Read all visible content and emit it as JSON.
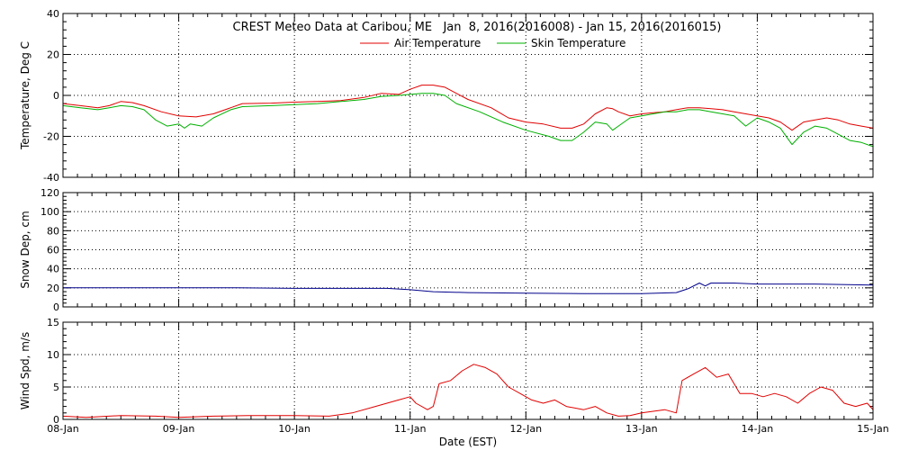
{
  "chart_data": {
    "type": "line",
    "title": "CREST Meteo Data at Caribou, ME   Jan  8, 2016(2016008) - Jan 15, 2016(2016015)",
    "xlabel": "Date (EST)",
    "x_ticks": [
      "08-Jan",
      "09-Jan",
      "10-Jan",
      "11-Jan",
      "12-Jan",
      "13-Jan",
      "14-Jan",
      "15-Jan"
    ],
    "x_range_days": [
      0,
      7
    ],
    "panels": [
      {
        "id": "temperature",
        "ylabel": "Temperature, Deg C",
        "ylim": [
          -40,
          40
        ],
        "yticks": [
          -40,
          -20,
          0,
          20,
          40
        ],
        "legend": "top-center",
        "series": [
          {
            "name": "Air Temperature",
            "color": "#e00000",
            "points": [
              [
                0.0,
                -4
              ],
              [
                0.15,
                -5
              ],
              [
                0.3,
                -6
              ],
              [
                0.4,
                -5
              ],
              [
                0.5,
                -3
              ],
              [
                0.6,
                -3.5
              ],
              [
                0.7,
                -5
              ],
              [
                0.85,
                -8
              ],
              [
                1.0,
                -10
              ],
              [
                1.15,
                -10.5
              ],
              [
                1.3,
                -9
              ],
              [
                1.45,
                -6
              ],
              [
                1.55,
                -4
              ],
              [
                1.8,
                -3.8
              ],
              [
                2.0,
                -3.3
              ],
              [
                2.2,
                -3
              ],
              [
                2.4,
                -2.5
              ],
              [
                2.6,
                -1
              ],
              [
                2.75,
                1
              ],
              [
                2.9,
                0.5
              ],
              [
                3.0,
                3
              ],
              [
                3.1,
                5
              ],
              [
                3.2,
                5
              ],
              [
                3.3,
                4
              ],
              [
                3.5,
                -2
              ],
              [
                3.7,
                -6
              ],
              [
                3.85,
                -11
              ],
              [
                4.0,
                -13
              ],
              [
                4.15,
                -14
              ],
              [
                4.3,
                -16
              ],
              [
                4.4,
                -16
              ],
              [
                4.5,
                -14
              ],
              [
                4.6,
                -9
              ],
              [
                4.7,
                -6
              ],
              [
                4.75,
                -6.5
              ],
              [
                4.8,
                -8
              ],
              [
                4.9,
                -10
              ],
              [
                5.0,
                -9
              ],
              [
                5.1,
                -8.5
              ],
              [
                5.2,
                -8
              ],
              [
                5.3,
                -7
              ],
              [
                5.4,
                -6
              ],
              [
                5.5,
                -6
              ],
              [
                5.6,
                -6.5
              ],
              [
                5.7,
                -7
              ],
              [
                5.8,
                -8
              ],
              [
                5.9,
                -9
              ],
              [
                6.0,
                -10
              ],
              [
                6.1,
                -11
              ],
              [
                6.2,
                -13
              ],
              [
                6.3,
                -17
              ],
              [
                6.4,
                -13
              ],
              [
                6.5,
                -12
              ],
              [
                6.6,
                -11
              ],
              [
                6.7,
                -12
              ],
              [
                6.8,
                -14
              ],
              [
                6.9,
                -15
              ],
              [
                7.0,
                -16
              ]
            ]
          },
          {
            "name": "Skin Temperature",
            "color": "#00b000",
            "points": [
              [
                0.0,
                -5
              ],
              [
                0.15,
                -6
              ],
              [
                0.3,
                -7
              ],
              [
                0.4,
                -6
              ],
              [
                0.5,
                -5
              ],
              [
                0.6,
                -5.5
              ],
              [
                0.7,
                -7
              ],
              [
                0.8,
                -12
              ],
              [
                0.9,
                -15
              ],
              [
                1.0,
                -14
              ],
              [
                1.05,
                -16
              ],
              [
                1.1,
                -14
              ],
              [
                1.2,
                -15
              ],
              [
                1.3,
                -11
              ],
              [
                1.45,
                -7
              ],
              [
                1.55,
                -5.5
              ],
              [
                1.8,
                -5
              ],
              [
                2.0,
                -4.5
              ],
              [
                2.2,
                -4
              ],
              [
                2.4,
                -3
              ],
              [
                2.6,
                -2
              ],
              [
                2.75,
                -0.5
              ],
              [
                2.9,
                0
              ],
              [
                3.0,
                0.5
              ],
              [
                3.1,
                1
              ],
              [
                3.2,
                1
              ],
              [
                3.3,
                0
              ],
              [
                3.4,
                -4
              ],
              [
                3.6,
                -8
              ],
              [
                3.8,
                -13
              ],
              [
                4.0,
                -17
              ],
              [
                4.2,
                -20
              ],
              [
                4.3,
                -22
              ],
              [
                4.4,
                -22
              ],
              [
                4.5,
                -18
              ],
              [
                4.6,
                -13
              ],
              [
                4.7,
                -14
              ],
              [
                4.75,
                -17
              ],
              [
                4.8,
                -15
              ],
              [
                4.9,
                -11
              ],
              [
                5.0,
                -10
              ],
              [
                5.1,
                -9
              ],
              [
                5.2,
                -8
              ],
              [
                5.3,
                -8
              ],
              [
                5.4,
                -7
              ],
              [
                5.5,
                -7
              ],
              [
                5.6,
                -8
              ],
              [
                5.7,
                -9
              ],
              [
                5.8,
                -10
              ],
              [
                5.9,
                -15
              ],
              [
                6.0,
                -11
              ],
              [
                6.1,
                -13
              ],
              [
                6.2,
                -16
              ],
              [
                6.3,
                -24
              ],
              [
                6.4,
                -18
              ],
              [
                6.5,
                -15
              ],
              [
                6.6,
                -16
              ],
              [
                6.7,
                -19
              ],
              [
                6.8,
                -22
              ],
              [
                6.9,
                -23
              ],
              [
                7.0,
                -25
              ]
            ]
          }
        ]
      },
      {
        "id": "snow-depth",
        "ylabel": "Snow Dep, cm",
        "ylim": [
          0,
          120
        ],
        "yticks": [
          0,
          20,
          40,
          60,
          80,
          100,
          120
        ],
        "series": [
          {
            "name": "",
            "color": "#00008b",
            "points": [
              [
                0.0,
                20
              ],
              [
                0.5,
                20
              ],
              [
                1.0,
                20
              ],
              [
                1.5,
                20
              ],
              [
                2.0,
                19.5
              ],
              [
                2.5,
                19.5
              ],
              [
                2.8,
                19.5
              ],
              [
                3.0,
                18
              ],
              [
                3.2,
                16
              ],
              [
                3.5,
                15
              ],
              [
                4.0,
                14.5
              ],
              [
                4.5,
                14
              ],
              [
                5.0,
                14
              ],
              [
                5.3,
                15
              ],
              [
                5.4,
                19
              ],
              [
                5.5,
                25
              ],
              [
                5.55,
                22
              ],
              [
                5.6,
                25
              ],
              [
                5.8,
                25
              ],
              [
                6.0,
                24
              ],
              [
                6.5,
                24
              ],
              [
                7.0,
                23
              ]
            ]
          }
        ]
      },
      {
        "id": "wind-speed",
        "ylabel": "Wind Spd, m/s",
        "ylim": [
          0,
          15
        ],
        "yticks": [
          0,
          5,
          10,
          15
        ],
        "series": [
          {
            "name": "",
            "color": "#e00000",
            "points": [
              [
                0.0,
                0.5
              ],
              [
                0.2,
                0.3
              ],
              [
                0.5,
                0.6
              ],
              [
                0.8,
                0.5
              ],
              [
                1.0,
                0.3
              ],
              [
                1.3,
                0.5
              ],
              [
                1.6,
                0.6
              ],
              [
                2.0,
                0.6
              ],
              [
                2.3,
                0.5
              ],
              [
                2.5,
                1.0
              ],
              [
                2.7,
                2.0
              ],
              [
                2.9,
                3.0
              ],
              [
                3.0,
                3.5
              ],
              [
                3.05,
                2.5
              ],
              [
                3.15,
                1.5
              ],
              [
                3.2,
                2.0
              ],
              [
                3.25,
                5.5
              ],
              [
                3.35,
                6.0
              ],
              [
                3.45,
                7.5
              ],
              [
                3.55,
                8.5
              ],
              [
                3.65,
                8.0
              ],
              [
                3.75,
                7.0
              ],
              [
                3.85,
                5.0
              ],
              [
                3.95,
                4.0
              ],
              [
                4.05,
                3.0
              ],
              [
                4.15,
                2.5
              ],
              [
                4.25,
                3.0
              ],
              [
                4.35,
                2.0
              ],
              [
                4.5,
                1.5
              ],
              [
                4.6,
                2.0
              ],
              [
                4.7,
                1.0
              ],
              [
                4.8,
                0.5
              ],
              [
                4.9,
                0.6
              ],
              [
                5.0,
                1.0
              ],
              [
                5.2,
                1.5
              ],
              [
                5.3,
                1.0
              ],
              [
                5.35,
                6.0
              ],
              [
                5.45,
                7.0
              ],
              [
                5.55,
                8.0
              ],
              [
                5.65,
                6.5
              ],
              [
                5.75,
                7.0
              ],
              [
                5.85,
                4.0
              ],
              [
                5.95,
                4.0
              ],
              [
                6.05,
                3.5
              ],
              [
                6.15,
                4.0
              ],
              [
                6.25,
                3.5
              ],
              [
                6.35,
                2.5
              ],
              [
                6.45,
                4.0
              ],
              [
                6.55,
                5.0
              ],
              [
                6.65,
                4.5
              ],
              [
                6.75,
                2.5
              ],
              [
                6.85,
                2.0
              ],
              [
                6.95,
                2.5
              ],
              [
                7.0,
                1.5
              ]
            ]
          }
        ]
      }
    ]
  }
}
